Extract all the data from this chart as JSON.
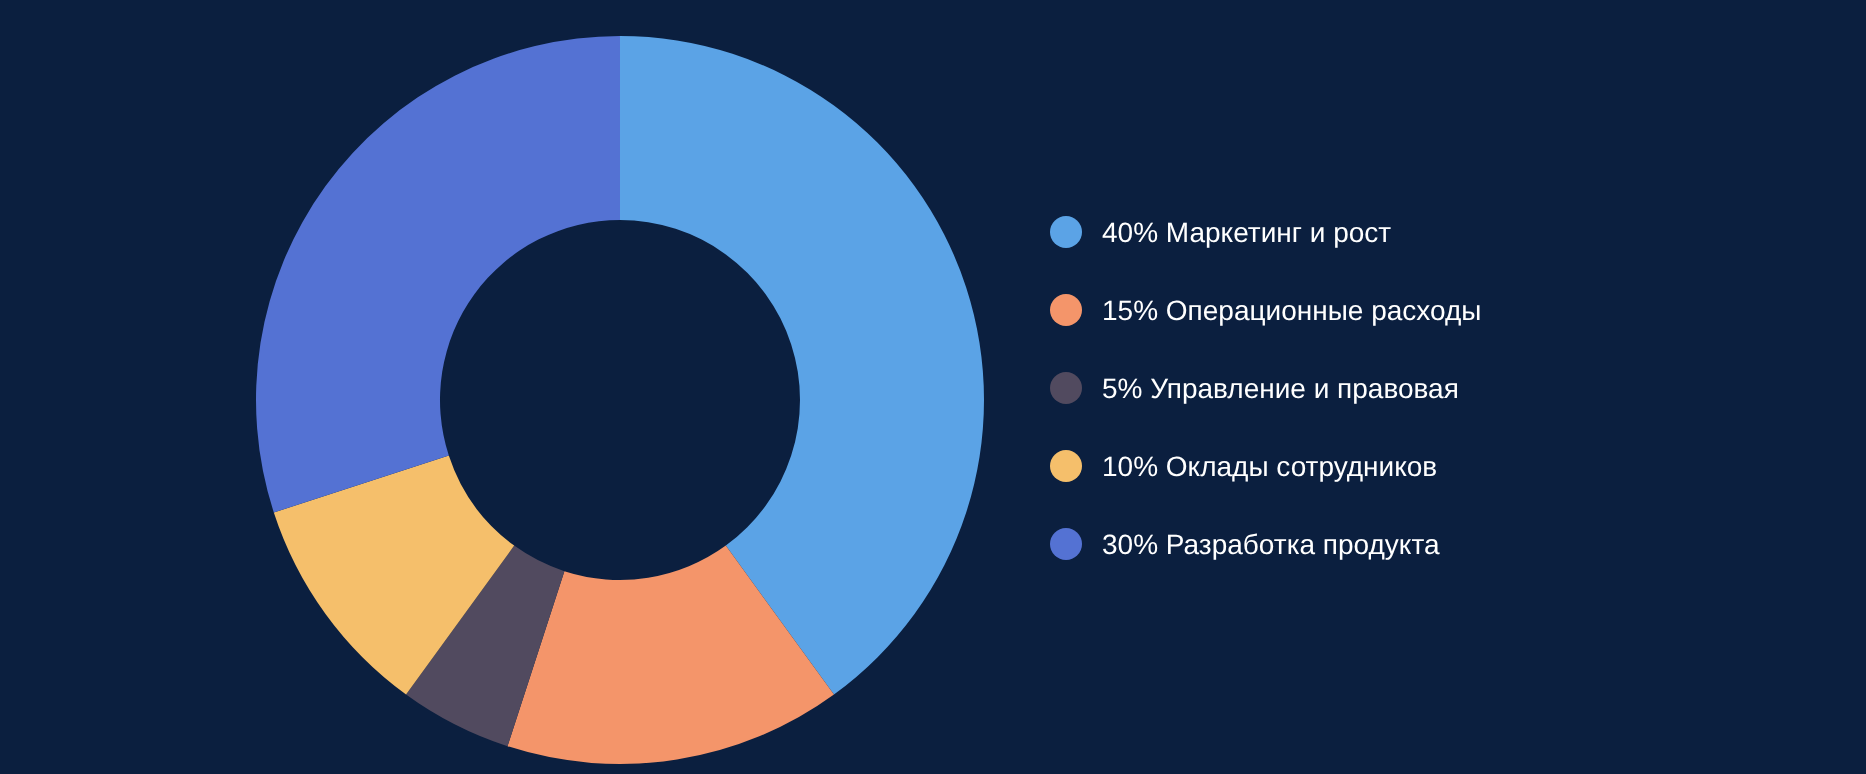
{
  "chart_data": {
    "type": "donut",
    "categories": [
      "40% Маркетинг и рост",
      "15% Операционные расходы",
      "5% Управление и правовая",
      "10% Оклады сотрудников",
      "30% Разработка продукта"
    ],
    "values": [
      40,
      15,
      5,
      10,
      30
    ],
    "colors": [
      "#5ba3e6",
      "#f4956a",
      "#514a5f",
      "#f5bf6b",
      "#5472d3"
    ],
    "legend": "right"
  }
}
